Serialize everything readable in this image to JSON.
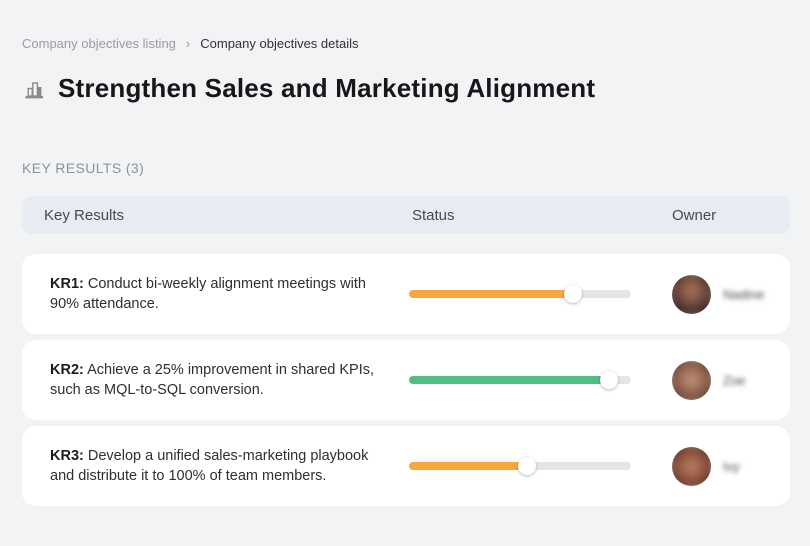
{
  "breadcrumb": {
    "separator": "›",
    "items": [
      {
        "label": "Company objectives listing"
      },
      {
        "label": "Company objectives details"
      }
    ]
  },
  "title": "Strengthen Sales and Marketing Alignment",
  "section_label": "KEY RESULTS (3)",
  "table": {
    "columns": [
      "Key Results",
      "Status",
      "Owner"
    ],
    "rows": [
      {
        "kr_label": "KR1:",
        "kr_text": "Conduct bi-weekly alignment meetings with 90% attendance.",
        "progress_percent": 74,
        "progress_color": "#F9A63C",
        "owner_name": "Nadine"
      },
      {
        "kr_label": "KR2:",
        "kr_text": "Achieve a 25% improvement in shared KPIs, such as MQL-to-SQL conversion.",
        "progress_percent": 90,
        "progress_color": "#53BE83",
        "owner_name": "Zoe"
      },
      {
        "kr_label": "KR3:",
        "kr_text": "Develop a unified sales-marketing playbook and distribute it to 100% of team members.",
        "progress_percent": 53,
        "progress_color": "#F9A63C",
        "owner_name": "Ivy"
      }
    ]
  },
  "colors": {
    "accent_orange": "#F9A63C",
    "accent_green": "#53BE83",
    "slider_track": "#E4E5E7",
    "table_header_bg": "#E8EBF1",
    "page_bg": "#F2F3F5",
    "card_bg": "#FFFFFF"
  }
}
